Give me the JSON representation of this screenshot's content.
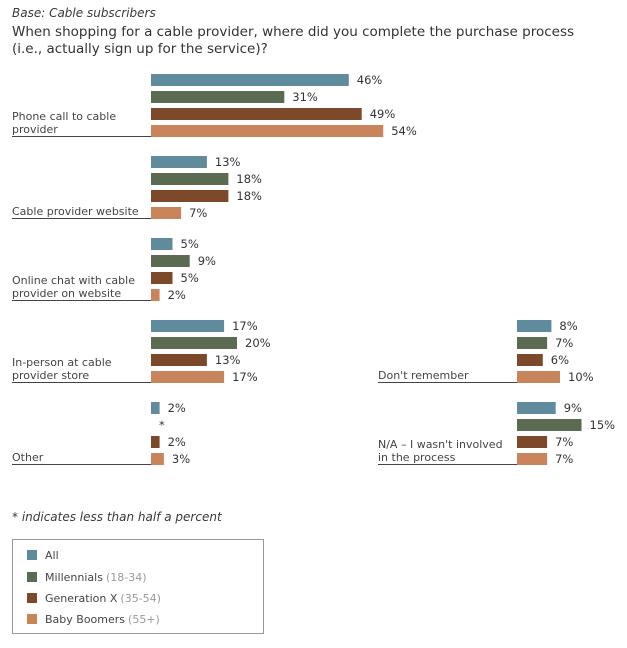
{
  "header": {
    "base": "Base: Cable subscribers",
    "question_line1": "When shopping for a cable provider, where did you complete the purchase process",
    "question_line2": "(i.e., actually sign up for the service)?"
  },
  "chart_data": {
    "type": "bar",
    "orientation": "horizontal",
    "title": "When shopping for a cable provider, where did you complete the purchase process (i.e., actually sign up for the service)?",
    "series_names": [
      "All",
      "Millennials (18-34)",
      "Generation X (35-54)",
      "Baby Boomers (55+)"
    ],
    "colors": [
      "#5f8b9c",
      "#5a6b52",
      "#7c4a2a",
      "#c9845c"
    ],
    "categories": [
      {
        "label_lines": [
          "Phone call to cable",
          "provider"
        ],
        "values": [
          46,
          31,
          49,
          54
        ],
        "labels": [
          "46%",
          "31%",
          "49%",
          "54%"
        ]
      },
      {
        "label_lines": [
          "Cable provider website"
        ],
        "values": [
          13,
          18,
          18,
          7
        ],
        "labels": [
          "13%",
          "18%",
          "18%",
          "7%"
        ]
      },
      {
        "label_lines": [
          "Online chat with cable",
          "provider on website"
        ],
        "values": [
          5,
          9,
          5,
          2
        ],
        "labels": [
          "5%",
          "9%",
          "5%",
          "2%"
        ]
      },
      {
        "label_lines": [
          "In-person at cable",
          "provider store"
        ],
        "values": [
          17,
          20,
          13,
          17
        ],
        "labels": [
          "17%",
          "20%",
          "13%",
          "17%"
        ]
      },
      {
        "label_lines": [
          "Other"
        ],
        "values": [
          2,
          0,
          2,
          3
        ],
        "labels": [
          "2%",
          "*",
          "2%",
          "3%"
        ]
      },
      {
        "label_lines": [
          "Don't remember"
        ],
        "values": [
          8,
          7,
          6,
          10
        ],
        "labels": [
          "8%",
          "7%",
          "6%",
          "10%"
        ]
      },
      {
        "label_lines": [
          "N/A – I wasn't involved",
          "in the process"
        ],
        "values": [
          9,
          15,
          7,
          7
        ],
        "labels": [
          "9%",
          "15%",
          "7%",
          "7%"
        ]
      }
    ]
  },
  "footnote": "* indicates less than half a percent",
  "legend": {
    "items": [
      {
        "name": "All",
        "sub": "",
        "color": "#5f8b9c"
      },
      {
        "name": "Millennials",
        "sub": "(18-34)",
        "color": "#5a6b52"
      },
      {
        "name": "Generation X",
        "sub": "(35-54)",
        "color": "#7c4a2a"
      },
      {
        "name": "Baby Boomers",
        "sub": "(55+)",
        "color": "#c9845c"
      }
    ]
  }
}
